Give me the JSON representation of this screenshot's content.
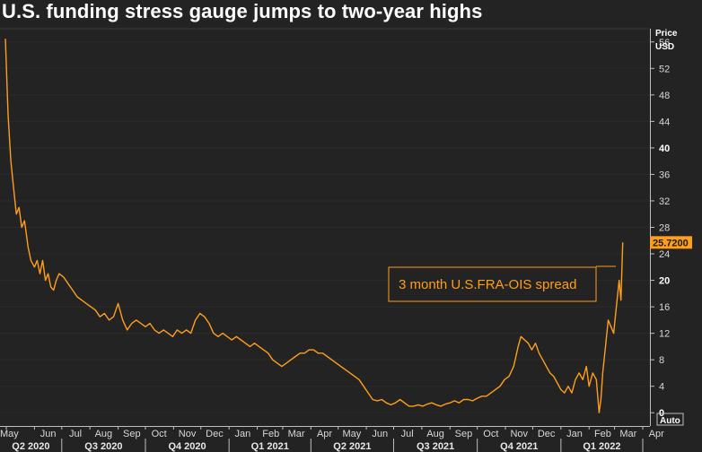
{
  "header": {
    "title": "U.S. funding stress gauge jumps to two-year highs"
  },
  "axis": {
    "price_label": "Price",
    "currency_label": "USD",
    "auto_label": "Auto"
  },
  "colors": {
    "line": "#ff9e1b",
    "background": "#232323",
    "axis": "#bfbfbf"
  },
  "chart_data": {
    "type": "line",
    "title": "U.S. funding stress gauge jumps to two-year highs",
    "ylabel": "Price USD",
    "ylim": [
      -2,
      58
    ],
    "yticks": [
      0,
      4,
      8,
      12,
      16,
      20,
      24,
      28,
      32,
      36,
      40,
      44,
      48,
      52,
      56
    ],
    "bold_yticks": [
      0,
      20,
      40
    ],
    "months": [
      "May",
      "Jun",
      "Jul",
      "Aug",
      "Sep",
      "Oct",
      "Nov",
      "Dec",
      "Jan",
      "Feb",
      "Mar",
      "Apr",
      "May",
      "Jun",
      "Jul",
      "Aug",
      "Sep",
      "Oct",
      "Nov",
      "Dec",
      "Jan",
      "Feb",
      "Mar",
      "Apr"
    ],
    "quarters": [
      "Q2 2020",
      "Q3 2020",
      "Q4 2020",
      "Q1 2021",
      "Q2 2021",
      "Q3 2021",
      "Q4 2021",
      "Q1 2022"
    ],
    "last_value_label": "25.7200",
    "last_value": 25.72,
    "annotation": "3 month U.S.FRA-OIS spread",
    "series": [
      {
        "name": "3 month U.S.FRA-OIS spread",
        "points": [
          [
            "2020-04-30",
            56.5
          ],
          [
            "2020-05-03",
            45
          ],
          [
            "2020-05-06",
            38
          ],
          [
            "2020-05-09",
            34
          ],
          [
            "2020-05-12",
            30
          ],
          [
            "2020-05-15",
            31
          ],
          [
            "2020-05-18",
            28
          ],
          [
            "2020-05-21",
            29
          ],
          [
            "2020-05-25",
            25
          ],
          [
            "2020-05-28",
            23
          ],
          [
            "2020-06-01",
            22
          ],
          [
            "2020-06-04",
            23
          ],
          [
            "2020-06-07",
            21
          ],
          [
            "2020-06-10",
            23
          ],
          [
            "2020-06-13",
            20
          ],
          [
            "2020-06-16",
            21
          ],
          [
            "2020-06-19",
            19
          ],
          [
            "2020-06-22",
            18.5
          ],
          [
            "2020-06-25",
            20
          ],
          [
            "2020-06-28",
            21
          ],
          [
            "2020-07-03",
            20.5
          ],
          [
            "2020-07-08",
            19.5
          ],
          [
            "2020-07-13",
            18.5
          ],
          [
            "2020-07-18",
            17.5
          ],
          [
            "2020-07-23",
            17
          ],
          [
            "2020-07-28",
            16.5
          ],
          [
            "2020-08-02",
            16
          ],
          [
            "2020-08-07",
            15.5
          ],
          [
            "2020-08-12",
            14.5
          ],
          [
            "2020-08-17",
            15
          ],
          [
            "2020-08-22",
            14
          ],
          [
            "2020-08-27",
            14.5
          ],
          [
            "2020-09-01",
            16.5
          ],
          [
            "2020-09-06",
            14
          ],
          [
            "2020-09-11",
            12.5
          ],
          [
            "2020-09-16",
            13.5
          ],
          [
            "2020-09-21",
            14
          ],
          [
            "2020-09-26",
            13.5
          ],
          [
            "2020-10-01",
            13
          ],
          [
            "2020-10-06",
            13.5
          ],
          [
            "2020-10-11",
            12.5
          ],
          [
            "2020-10-16",
            12
          ],
          [
            "2020-10-21",
            12.5
          ],
          [
            "2020-10-26",
            12
          ],
          [
            "2020-10-31",
            11.5
          ],
          [
            "2020-11-05",
            12.5
          ],
          [
            "2020-11-10",
            12
          ],
          [
            "2020-11-15",
            12.5
          ],
          [
            "2020-11-20",
            12
          ],
          [
            "2020-11-25",
            14
          ],
          [
            "2020-11-30",
            15
          ],
          [
            "2020-12-05",
            14.5
          ],
          [
            "2020-12-10",
            13.5
          ],
          [
            "2020-12-15",
            12
          ],
          [
            "2020-12-20",
            11.5
          ],
          [
            "2020-12-25",
            12
          ],
          [
            "2020-12-30",
            11.5
          ],
          [
            "2021-01-04",
            11
          ],
          [
            "2021-01-09",
            11.5
          ],
          [
            "2021-01-14",
            11
          ],
          [
            "2021-01-19",
            10.5
          ],
          [
            "2021-01-24",
            10
          ],
          [
            "2021-01-29",
            10.5
          ],
          [
            "2021-02-03",
            10
          ],
          [
            "2021-02-08",
            9.5
          ],
          [
            "2021-02-13",
            9
          ],
          [
            "2021-02-18",
            8
          ],
          [
            "2021-02-23",
            7.5
          ],
          [
            "2021-02-28",
            7
          ],
          [
            "2021-03-05",
            7.5
          ],
          [
            "2021-03-10",
            8
          ],
          [
            "2021-03-15",
            8.5
          ],
          [
            "2021-03-20",
            9
          ],
          [
            "2021-03-25",
            9
          ],
          [
            "2021-03-30",
            9.5
          ],
          [
            "2021-04-04",
            9.5
          ],
          [
            "2021-04-09",
            9
          ],
          [
            "2021-04-14",
            9
          ],
          [
            "2021-04-19",
            8.5
          ],
          [
            "2021-04-24",
            8
          ],
          [
            "2021-04-29",
            7.5
          ],
          [
            "2021-05-04",
            7
          ],
          [
            "2021-05-09",
            6.5
          ],
          [
            "2021-05-14",
            6
          ],
          [
            "2021-05-19",
            5.5
          ],
          [
            "2021-05-24",
            5
          ],
          [
            "2021-05-29",
            4
          ],
          [
            "2021-06-03",
            3
          ],
          [
            "2021-06-08",
            2
          ],
          [
            "2021-06-13",
            1.8
          ],
          [
            "2021-06-18",
            2
          ],
          [
            "2021-06-23",
            1.5
          ],
          [
            "2021-06-28",
            1.2
          ],
          [
            "2021-07-03",
            1.5
          ],
          [
            "2021-07-08",
            2
          ],
          [
            "2021-07-13",
            1.5
          ],
          [
            "2021-07-18",
            1
          ],
          [
            "2021-07-23",
            1
          ],
          [
            "2021-07-28",
            1.2
          ],
          [
            "2021-08-02",
            1
          ],
          [
            "2021-08-07",
            1.3
          ],
          [
            "2021-08-12",
            1.5
          ],
          [
            "2021-08-17",
            1.2
          ],
          [
            "2021-08-22",
            1
          ],
          [
            "2021-08-27",
            1.3
          ],
          [
            "2021-09-01",
            1.5
          ],
          [
            "2021-09-06",
            1.8
          ],
          [
            "2021-09-11",
            1.5
          ],
          [
            "2021-09-16",
            2
          ],
          [
            "2021-09-21",
            2
          ],
          [
            "2021-09-26",
            1.8
          ],
          [
            "2021-10-01",
            2.2
          ],
          [
            "2021-10-06",
            2.5
          ],
          [
            "2021-10-11",
            2.5
          ],
          [
            "2021-10-16",
            3
          ],
          [
            "2021-10-21",
            3.5
          ],
          [
            "2021-10-26",
            4
          ],
          [
            "2021-10-31",
            5
          ],
          [
            "2021-11-05",
            5.5
          ],
          [
            "2021-11-10",
            7
          ],
          [
            "2021-11-15",
            10
          ],
          [
            "2021-11-18",
            11.5
          ],
          [
            "2021-11-22",
            11
          ],
          [
            "2021-11-26",
            10.5
          ],
          [
            "2021-11-30",
            9.5
          ],
          [
            "2021-12-04",
            10.5
          ],
          [
            "2021-12-08",
            9
          ],
          [
            "2021-12-12",
            8
          ],
          [
            "2021-12-16",
            7
          ],
          [
            "2021-12-20",
            6
          ],
          [
            "2021-12-24",
            5.5
          ],
          [
            "2021-12-28",
            4.5
          ],
          [
            "2022-01-01",
            3.5
          ],
          [
            "2022-01-05",
            3
          ],
          [
            "2022-01-09",
            4
          ],
          [
            "2022-01-13",
            3
          ],
          [
            "2022-01-17",
            5
          ],
          [
            "2022-01-21",
            6
          ],
          [
            "2022-01-25",
            5
          ],
          [
            "2022-01-29",
            7
          ],
          [
            "2022-02-01",
            4
          ],
          [
            "2022-02-05",
            6
          ],
          [
            "2022-02-09",
            5
          ],
          [
            "2022-02-12",
            0
          ],
          [
            "2022-02-14",
            2
          ],
          [
            "2022-02-16",
            6
          ],
          [
            "2022-02-19",
            10
          ],
          [
            "2022-02-22",
            14
          ],
          [
            "2022-02-25",
            13
          ],
          [
            "2022-02-28",
            12
          ],
          [
            "2022-03-03",
            16
          ],
          [
            "2022-03-06",
            20
          ],
          [
            "2022-03-08",
            17
          ],
          [
            "2022-03-10",
            25.72
          ]
        ]
      }
    ]
  }
}
